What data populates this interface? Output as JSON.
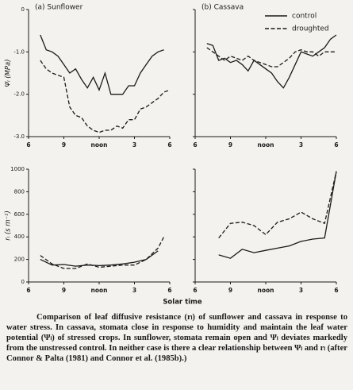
{
  "chart_data": [
    {
      "type": "line",
      "title": "(a) Sunflower",
      "ylabel": "Ψₗ (MPa)",
      "x": [
        7,
        7.5,
        8,
        8.5,
        9,
        9.5,
        10,
        10.5,
        11,
        11.5,
        12,
        12.5,
        13,
        13.5,
        14,
        14.5,
        15,
        15.5,
        16,
        16.5,
        17,
        17.5,
        18
      ],
      "series": [
        {
          "style": "solid",
          "color": "#1a1a1a",
          "values": [
            -0.6,
            -0.95,
            -1.0,
            -1.1,
            -1.3,
            -1.5,
            -1.4,
            -1.65,
            -1.85,
            -1.6,
            -1.9,
            -1.5,
            -2.0,
            -2.0,
            -2.0,
            -1.8,
            -1.8,
            -1.5,
            -1.3,
            -1.1,
            -1.0,
            -0.95,
            null
          ]
        },
        {
          "style": "dashed",
          "color": "#1a1a1a",
          "values": [
            -1.2,
            -1.4,
            -1.5,
            -1.55,
            -1.6,
            -2.3,
            -2.5,
            -2.55,
            -2.75,
            -2.85,
            -2.9,
            -2.85,
            -2.85,
            -2.75,
            -2.8,
            -2.6,
            -2.6,
            -2.35,
            -2.3,
            -2.2,
            -2.1,
            -1.95,
            -1.9
          ]
        }
      ],
      "xlim": [
        6,
        18
      ],
      "xticks": [
        6,
        9,
        {
          "value": 12,
          "label": "noon"
        },
        {
          "value": 15,
          "label": "3"
        },
        {
          "value": 18,
          "label": "6"
        }
      ],
      "ylim": [
        -3,
        0
      ],
      "yticks": [
        0,
        {
          "value": -1,
          "label": "-1.0"
        },
        {
          "value": -2,
          "label": "-2.0"
        },
        {
          "value": -3,
          "label": "-3.0"
        }
      ],
      "ytick_labels": true
    },
    {
      "type": "line",
      "title": "(b) Cassava",
      "legend": "upper right",
      "x": [
        7,
        7.5,
        8,
        8.5,
        9,
        9.5,
        10,
        10.5,
        11,
        11.5,
        12,
        12.5,
        13,
        13.5,
        14,
        14.5,
        15,
        15.5,
        16,
        16.5,
        17,
        17.5,
        18
      ],
      "series": [
        {
          "name": "control",
          "style": "solid",
          "color": "#1a1a1a",
          "values": [
            -0.8,
            -0.85,
            -1.2,
            -1.15,
            -1.25,
            -1.2,
            -1.3,
            -1.45,
            -1.2,
            -1.3,
            -1.4,
            -1.5,
            -1.7,
            -1.85,
            -1.6,
            -1.3,
            -1.0,
            -1.05,
            -1.1,
            -1.0,
            -0.9,
            -0.7,
            -0.6
          ]
        },
        {
          "name": "droughted",
          "style": "dashed",
          "color": "#1a1a1a",
          "values": [
            -0.9,
            -1.0,
            -1.1,
            -1.2,
            -1.1,
            -1.15,
            -1.2,
            -1.1,
            -1.2,
            -1.25,
            -1.3,
            -1.35,
            -1.35,
            -1.25,
            -1.15,
            -1.0,
            -0.95,
            -1.0,
            -1.0,
            -1.1,
            -1.0,
            -1.0,
            -1.0
          ]
        }
      ],
      "xlim": [
        6,
        18
      ],
      "xticks": [
        6,
        9,
        {
          "value": 12,
          "label": "noon"
        },
        {
          "value": 15,
          "label": "3"
        },
        {
          "value": 18,
          "label": "6"
        }
      ],
      "ylim": [
        -3,
        0
      ],
      "yticks": [
        0,
        -1,
        -2,
        -3
      ],
      "ytick_labels": false
    },
    {
      "type": "line",
      "ylabel": "rₗ (s m⁻¹)",
      "x": [
        7,
        8,
        9,
        10,
        11,
        12,
        13,
        14,
        15,
        16,
        17,
        17.5
      ],
      "series": [
        {
          "style": "solid",
          "color": "#1a1a1a",
          "values": [
            200,
            150,
            155,
            140,
            150,
            145,
            150,
            160,
            175,
            200,
            275,
            null
          ]
        },
        {
          "style": "dashed",
          "color": "#1a1a1a",
          "values": [
            235,
            160,
            120,
            120,
            160,
            130,
            140,
            150,
            150,
            200,
            300,
            400
          ]
        }
      ],
      "xlim": [
        6,
        18
      ],
      "xticks": [
        6,
        9,
        {
          "value": 12,
          "label": "noon"
        },
        {
          "value": 15,
          "label": "3"
        },
        {
          "value": 18,
          "label": "6"
        }
      ],
      "ylim": [
        0,
        1000
      ],
      "yticks": [
        0,
        200,
        400,
        600,
        800,
        1000
      ],
      "ytick_labels": true
    },
    {
      "type": "line",
      "x": [
        8,
        9,
        10,
        11,
        12,
        13,
        14,
        15,
        16,
        17,
        18
      ],
      "series": [
        {
          "style": "solid",
          "color": "#1a1a1a",
          "values": [
            240,
            210,
            290,
            260,
            280,
            300,
            320,
            360,
            380,
            390,
            980
          ]
        },
        {
          "style": "dashed",
          "color": "#1a1a1a",
          "values": [
            390,
            520,
            530,
            500,
            420,
            530,
            560,
            620,
            560,
            520,
            980
          ]
        }
      ],
      "xlim": [
        6,
        18
      ],
      "xticks": [
        6,
        9,
        {
          "value": 12,
          "label": "noon"
        },
        {
          "value": 15,
          "label": "3"
        },
        {
          "value": 18,
          "label": "6"
        }
      ],
      "ylim": [
        0,
        1000
      ],
      "yticks": [
        0,
        200,
        400,
        600,
        800,
        1000
      ],
      "ytick_labels": false
    }
  ],
  "xlabel": "Solar time",
  "caption": "Comparison of leaf diffusive resistance (rₗ) of sunflower and cassava in response to water stress. In cassava, stomata close in response to humidity and maintain the leaf water potential (Ψₗ) of stressed crops. In sunflower, stomata remain open and Ψₗ deviates markedly from the unstressed control. In neither case is there a clear relationship between Ψₗ and rₗ (after Connor & Palta (1981) and Connor et al. (1985b).)"
}
